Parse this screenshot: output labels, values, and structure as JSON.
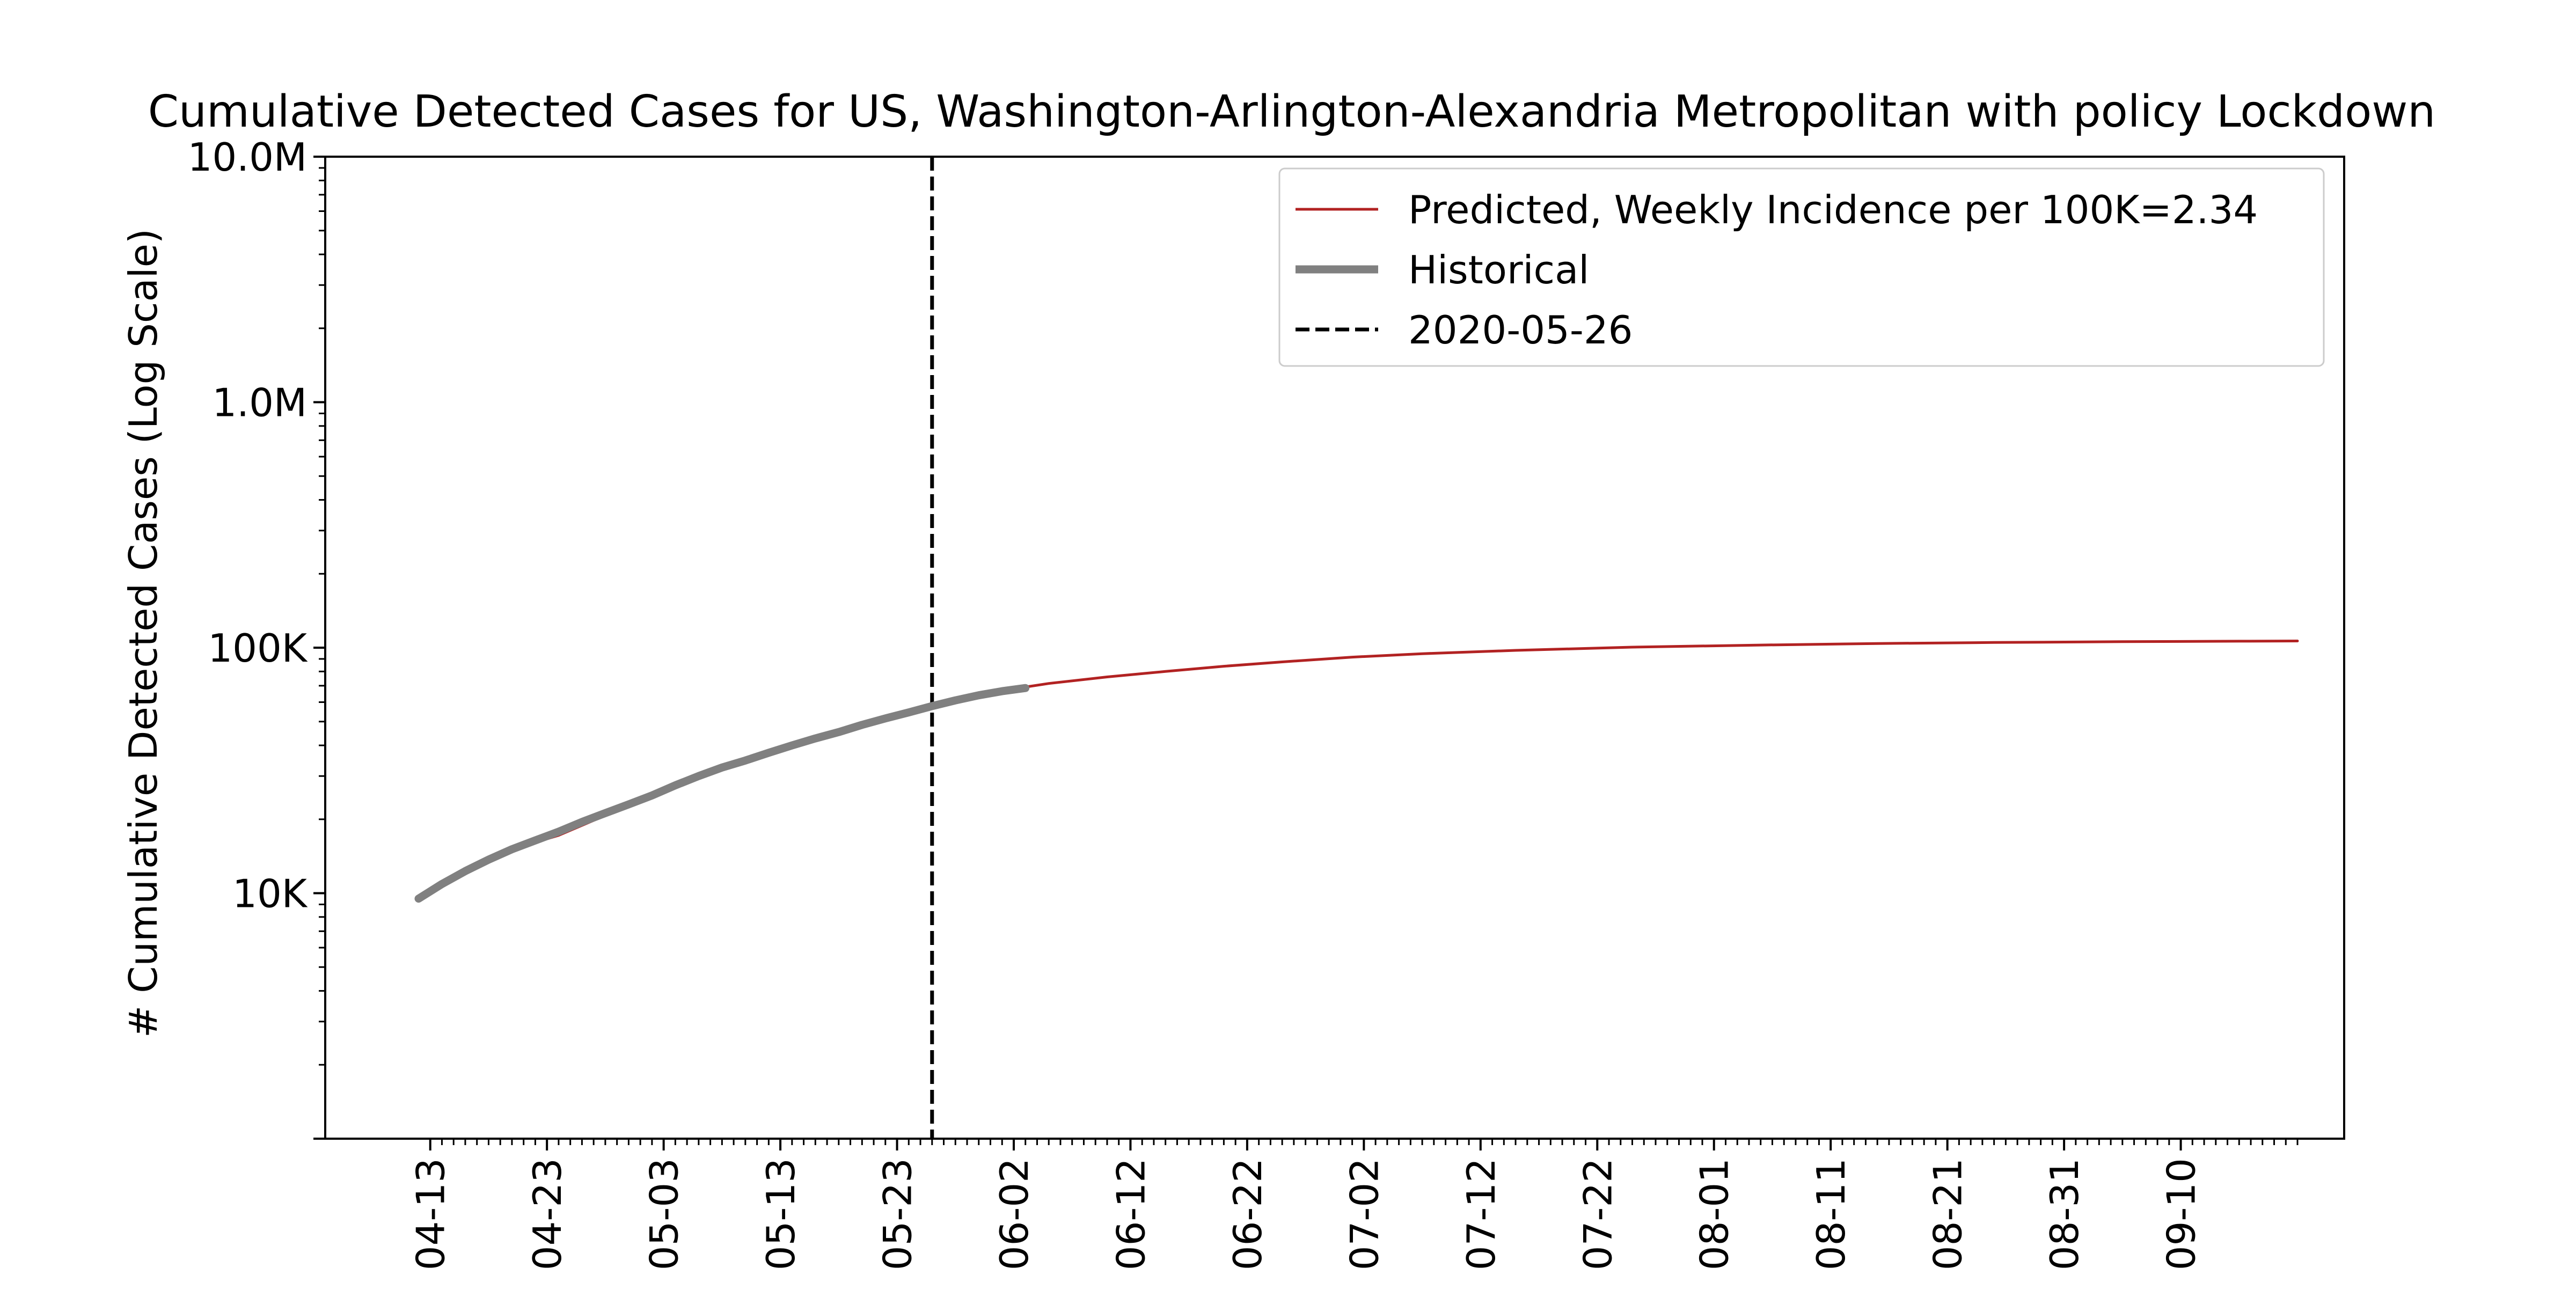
{
  "chart_data": {
    "type": "line",
    "title": "Cumulative Detected Cases for US, Washington-Arlington-Alexandria Metropolitan with policy Lockdown",
    "xlabel": "",
    "ylabel": "# Cumulative Detected Cases (Log Scale)",
    "yscale": "log",
    "ylim": [
      1000,
      10000000
    ],
    "xlim": [
      "2020-04-04",
      "2020-09-24"
    ],
    "x_tick_labels": [
      "04-13",
      "04-23",
      "05-03",
      "05-13",
      "05-23",
      "06-02",
      "06-12",
      "06-22",
      "07-02",
      "07-12",
      "07-22",
      "08-01",
      "08-11",
      "08-21",
      "08-31",
      "09-10"
    ],
    "x_tick_dates": [
      "2020-04-13",
      "2020-04-23",
      "2020-05-03",
      "2020-05-13",
      "2020-05-23",
      "2020-06-02",
      "2020-06-12",
      "2020-06-22",
      "2020-07-02",
      "2020-07-12",
      "2020-07-22",
      "2020-08-01",
      "2020-08-11",
      "2020-08-21",
      "2020-08-31",
      "2020-09-10"
    ],
    "y_ticks": [
      {
        "value": 10000,
        "label": "10K"
      },
      {
        "value": 100000,
        "label": "100K"
      },
      {
        "value": 1000000,
        "label": "1.0M"
      },
      {
        "value": 10000000,
        "label": "10.0M"
      }
    ],
    "grid": false,
    "legend_position": "top-right",
    "series": [
      {
        "name": "Predicted, Weekly Incidence per 100K=2.34",
        "color": "#b22222",
        "style": "solid",
        "points": [
          [
            "2020-04-12",
            9500
          ],
          [
            "2020-04-15",
            11300
          ],
          [
            "2020-04-18",
            13600
          ],
          [
            "2020-04-21",
            15600
          ],
          [
            "2020-04-24",
            17200
          ],
          [
            "2020-04-27",
            19800
          ],
          [
            "2020-04-30",
            22600
          ],
          [
            "2020-05-03",
            26500
          ],
          [
            "2020-05-06",
            30500
          ],
          [
            "2020-05-09",
            34000
          ],
          [
            "2020-05-12",
            38000
          ],
          [
            "2020-05-15",
            41500
          ],
          [
            "2020-05-18",
            45500
          ],
          [
            "2020-05-21",
            50000
          ],
          [
            "2020-05-24",
            54500
          ],
          [
            "2020-05-27",
            59500
          ],
          [
            "2020-05-30",
            64000
          ],
          [
            "2020-06-02",
            68000
          ],
          [
            "2020-06-05",
            71500
          ],
          [
            "2020-06-10",
            76000
          ],
          [
            "2020-06-15",
            80000
          ],
          [
            "2020-06-20",
            84000
          ],
          [
            "2020-06-25",
            87500
          ],
          [
            "2020-07-01",
            91500
          ],
          [
            "2020-07-07",
            94500
          ],
          [
            "2020-07-15",
            97500
          ],
          [
            "2020-07-25",
            100500
          ],
          [
            "2020-08-05",
            102500
          ],
          [
            "2020-08-15",
            104000
          ],
          [
            "2020-08-25",
            105000
          ],
          [
            "2020-09-05",
            105800
          ],
          [
            "2020-09-15",
            106300
          ],
          [
            "2020-09-20",
            106500
          ]
        ]
      },
      {
        "name": "Historical",
        "color": "#808080",
        "style": "solid-thick",
        "points": [
          [
            "2020-04-12",
            9500
          ],
          [
            "2020-04-14",
            10900
          ],
          [
            "2020-04-16",
            12300
          ],
          [
            "2020-04-18",
            13700
          ],
          [
            "2020-04-20",
            15100
          ],
          [
            "2020-04-22",
            16400
          ],
          [
            "2020-04-24",
            17800
          ],
          [
            "2020-04-26",
            19500
          ],
          [
            "2020-04-28",
            21200
          ],
          [
            "2020-04-30",
            23000
          ],
          [
            "2020-05-02",
            25000
          ],
          [
            "2020-05-04",
            27500
          ],
          [
            "2020-05-06",
            30000
          ],
          [
            "2020-05-08",
            32500
          ],
          [
            "2020-05-10",
            34700
          ],
          [
            "2020-05-12",
            37300
          ],
          [
            "2020-05-14",
            40000
          ],
          [
            "2020-05-16",
            42700
          ],
          [
            "2020-05-18",
            45300
          ],
          [
            "2020-05-20",
            48500
          ],
          [
            "2020-05-22",
            51500
          ],
          [
            "2020-05-24",
            54500
          ],
          [
            "2020-05-26",
            57800
          ],
          [
            "2020-05-28",
            61000
          ],
          [
            "2020-05-30",
            64000
          ],
          [
            "2020-06-01",
            66500
          ],
          [
            "2020-06-03",
            68500
          ]
        ]
      }
    ],
    "annotations": [
      {
        "type": "vline",
        "x": "2020-05-26",
        "label": "2020-05-26",
        "color": "#000000",
        "style": "dashed"
      }
    ]
  }
}
